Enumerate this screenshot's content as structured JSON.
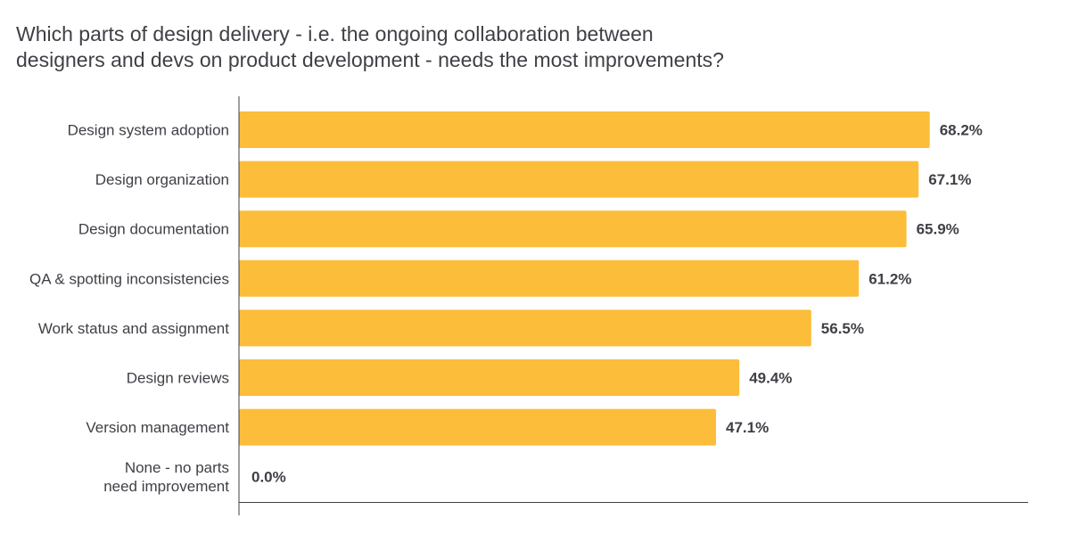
{
  "title_lines": [
    "Which parts of design delivery - i.e. the ongoing collaboration between",
    "designers and devs on product development - needs the most improvements?"
  ],
  "colors": {
    "bar": "#fbbd3a",
    "axis": "#3f3f46",
    "text": "#3f3f46"
  },
  "chart_data": {
    "type": "bar",
    "orientation": "horizontal",
    "title": "Which parts of design delivery - i.e. the ongoing collaboration between designers and devs on product development - needs the most improvements?",
    "categories": [
      [
        "Design system adoption"
      ],
      [
        "Design organization"
      ],
      [
        "Design documentation"
      ],
      [
        "QA & spotting inconsistencies"
      ],
      [
        "Work status and assignment"
      ],
      [
        "Design reviews"
      ],
      [
        "Version management"
      ],
      [
        "None - no parts",
        "need improvement"
      ]
    ],
    "values": [
      68.2,
      67.1,
      65.9,
      61.2,
      56.5,
      49.4,
      47.1,
      0.0
    ],
    "value_labels": [
      "68.2%",
      "67.1%",
      "65.9%",
      "61.2%",
      "56.5%",
      "49.4%",
      "47.1%",
      "0.0%"
    ],
    "unit": "%",
    "xlim": [
      0,
      74.3
    ],
    "grid": false,
    "legend": "none"
  }
}
